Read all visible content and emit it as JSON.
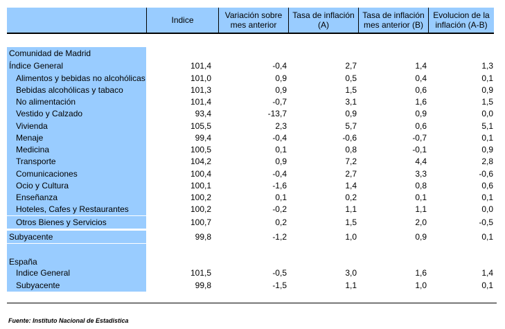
{
  "header": {
    "col0": "",
    "col1": "Indice",
    "col2": "Variación sobre mes anterior",
    "col3": "Tasa de inflación (A)",
    "col4": "Tasa de inflación mes anterior (B)",
    "col5": "Evolucion de la inflación (A-B)"
  },
  "rows": [
    {
      "label": "Comunidad de Madrid",
      "values": [
        "",
        "",
        "",
        "",
        ""
      ]
    },
    {
      "label": "Índice General",
      "values": [
        "101,4",
        "-0,4",
        "2,7",
        "1,4",
        "1,3"
      ]
    },
    {
      "label": "Alimentos y bebidas no alcohólicas",
      "values": [
        "101,0",
        "0,9",
        "0,5",
        "0,4",
        "0,1"
      ]
    },
    {
      "label": "Bebidas alcohólicas y tabaco",
      "values": [
        "101,3",
        "0,9",
        "1,5",
        "0,6",
        "0,9"
      ]
    },
    {
      "label": "No alimentación",
      "values": [
        "101,4",
        "-0,7",
        "3,1",
        "1,6",
        "1,5"
      ]
    },
    {
      "label": "Vestido y Calzado",
      "values": [
        "93,4",
        "-13,7",
        "0,9",
        "0,9",
        "0,0"
      ]
    },
    {
      "label": "Vivienda",
      "values": [
        "105,5",
        "2,3",
        "5,7",
        "0,6",
        "5,1"
      ]
    },
    {
      "label": "Menaje",
      "values": [
        "99,4",
        "-0,4",
        "-0,6",
        "-0,7",
        "0,1"
      ]
    },
    {
      "label": "Medicina",
      "values": [
        "100,5",
        "0,1",
        "0,8",
        "-0,1",
        "0,9"
      ]
    },
    {
      "label": "Transporte",
      "values": [
        "104,2",
        "0,9",
        "7,2",
        "4,4",
        "2,8"
      ]
    },
    {
      "label": "Comunicaciones",
      "values": [
        "100,4",
        "-0,4",
        "2,7",
        "3,3",
        "-0,6"
      ]
    },
    {
      "label": "Ocio y Cultura",
      "values": [
        "100,1",
        "-1,6",
        "1,4",
        "0,8",
        "0,6"
      ]
    },
    {
      "label": "Enseñanza",
      "values": [
        "100,2",
        "0,1",
        "0,2",
        "0,1",
        "0,1"
      ]
    },
    {
      "label": "Hoteles, Cafes y Restaurantes",
      "values": [
        "100,2",
        "-0,2",
        "1,1",
        "1,1",
        "0,0"
      ]
    },
    {
      "label": "Otros Bienes y Servicios",
      "values": [
        "100,7",
        "0,2",
        "1,5",
        "2,0",
        "-0,5"
      ]
    },
    {
      "label": "Subyacente",
      "values": [
        "99,8",
        "-1,2",
        "1,0",
        "0,9",
        "0,1"
      ]
    },
    {
      "label": "",
      "values": [
        "",
        "",
        "",
        "",
        ""
      ]
    },
    {
      "label": "España",
      "values": [
        "",
        "",
        "",
        "",
        ""
      ]
    },
    {
      "label": "Indice General",
      "values": [
        "101,5",
        "-0,5",
        "3,0",
        "1,6",
        "1,4"
      ]
    },
    {
      "label": "Subyacente",
      "values": [
        "99,8",
        "-1,5",
        "1,1",
        "1,0",
        "0,1"
      ]
    }
  ],
  "source": "Fuente: Instituto Nacional de Estadistica"
}
